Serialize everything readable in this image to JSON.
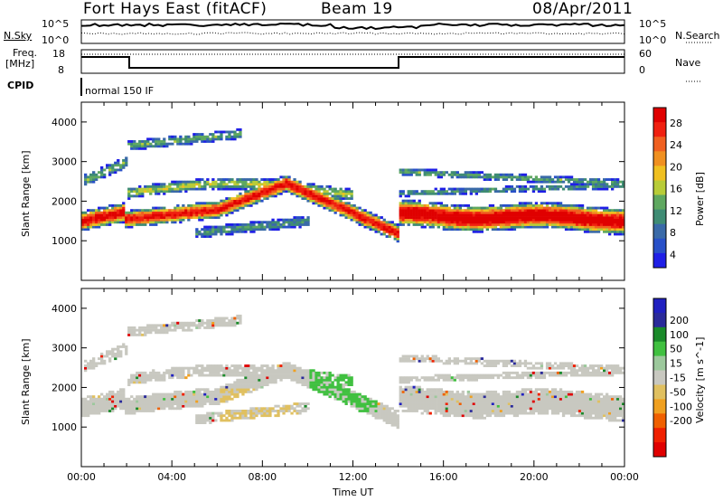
{
  "header": {
    "title_left": "Fort Hays East (fitACF)",
    "title_center": "Beam 19",
    "title_right": "08/Apr/2011"
  },
  "top_panels": {
    "nsky_label": "N.Sky",
    "nsky_ticks": [
      "10^5",
      "10^0"
    ],
    "nsearch_label": "N.Search",
    "nsearch_ticks": [
      "10^5",
      "10^0"
    ],
    "freq_label_line1": "Freq.",
    "freq_label_line2": "[MHz]",
    "freq_ticks": [
      "18",
      "8"
    ],
    "nave_label": "Nave",
    "nave_ticks": [
      "60",
      "0"
    ],
    "cpid_label": "CPID",
    "cpid_text": "normal 150 IF"
  },
  "colors": {
    "power_scale": [
      "#1f1fe6",
      "#2850c8",
      "#3a6aa8",
      "#3f8c74",
      "#5fa860",
      "#b8cc38",
      "#f0c020",
      "#f09020",
      "#f06020",
      "#f02010",
      "#e00000"
    ],
    "velocity_scale": [
      "#2020c0",
      "#2a2a9a",
      "#1a8a2a",
      "#40c040",
      "#9cc89c",
      "#c8c8c0",
      "#e0c060",
      "#f0a020",
      "#f06000",
      "#f02000",
      "#e00000"
    ],
    "gray": "#c8c8c0"
  },
  "chart_data": [
    {
      "type": "heatmap",
      "name": "power",
      "ylabel": "Slant Range [km]",
      "yticks": [
        1000,
        2000,
        3000,
        4000
      ],
      "ylim": [
        0,
        4500
      ],
      "xlim": [
        0,
        24
      ],
      "colorbar_label": "Power [dB]",
      "colorbar_ticks": [
        "28",
        "24",
        "20",
        "16",
        "12",
        "8",
        "4"
      ],
      "colorbar_range": [
        0,
        32
      ]
    },
    {
      "type": "heatmap",
      "name": "velocity",
      "ylabel": "Slant Range [km]",
      "yticks": [
        1000,
        2000,
        3000,
        4000
      ],
      "ylim": [
        0,
        4500
      ],
      "xlim": [
        0,
        24
      ],
      "colorbar_label": "Velocity [m s^-1]",
      "colorbar_ticks": [
        "200",
        "100",
        "50",
        "15",
        "-15",
        "-50",
        "-100",
        "-200"
      ]
    }
  ],
  "xaxis": {
    "ticks": [
      "00:00",
      "04:00",
      "08:00",
      "12:00",
      "16:00",
      "20:00",
      "00:00"
    ],
    "label": "Time UT"
  }
}
